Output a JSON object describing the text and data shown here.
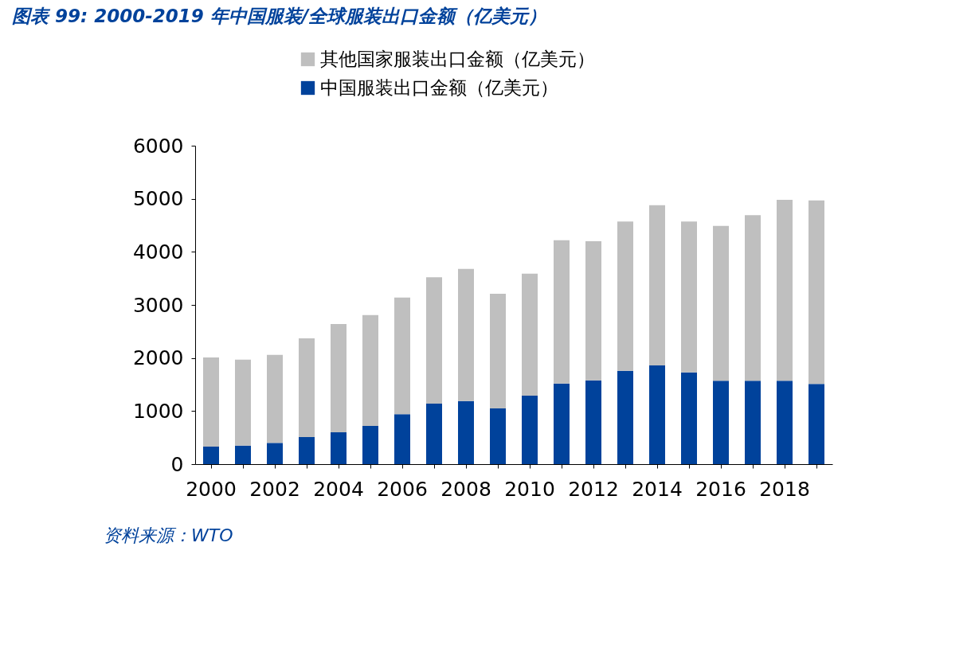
{
  "chart_data": {
    "type": "bar",
    "title": "图表 99:  2000-2019 年中国服装/全球服装出口金额（亿美元）",
    "categories": [
      "2000",
      null,
      "2002",
      null,
      "2004",
      null,
      "2006",
      null,
      "2008",
      null,
      "2010",
      null,
      "2012",
      null,
      "2014",
      null,
      "2016",
      null,
      "2018",
      null
    ],
    "stacked": true,
    "series": [
      {
        "name": "中国服装出口金额（亿美元）",
        "color": "#00429b",
        "values": [
          330,
          350,
          400,
          510,
          600,
          720,
          940,
          1140,
          1190,
          1050,
          1290,
          1520,
          1580,
          1760,
          1860,
          1730,
          1570,
          1570,
          1570,
          1510
        ]
      },
      {
        "name": "其他国家服装出口金额（亿美元）",
        "color": "#bfbfbf",
        "values": [
          1680,
          1620,
          1660,
          1860,
          2040,
          2090,
          2200,
          2380,
          2490,
          2160,
          2300,
          2700,
          2620,
          2810,
          3020,
          2840,
          2920,
          3120,
          3410,
          3460
        ]
      }
    ],
    "ylim": [
      0,
      6000
    ],
    "yticks": [
      0,
      1000,
      2000,
      3000,
      4000,
      5000,
      6000
    ],
    "grid": false,
    "legend": "top",
    "annotations": [
      "资料来源：WTO"
    ]
  }
}
